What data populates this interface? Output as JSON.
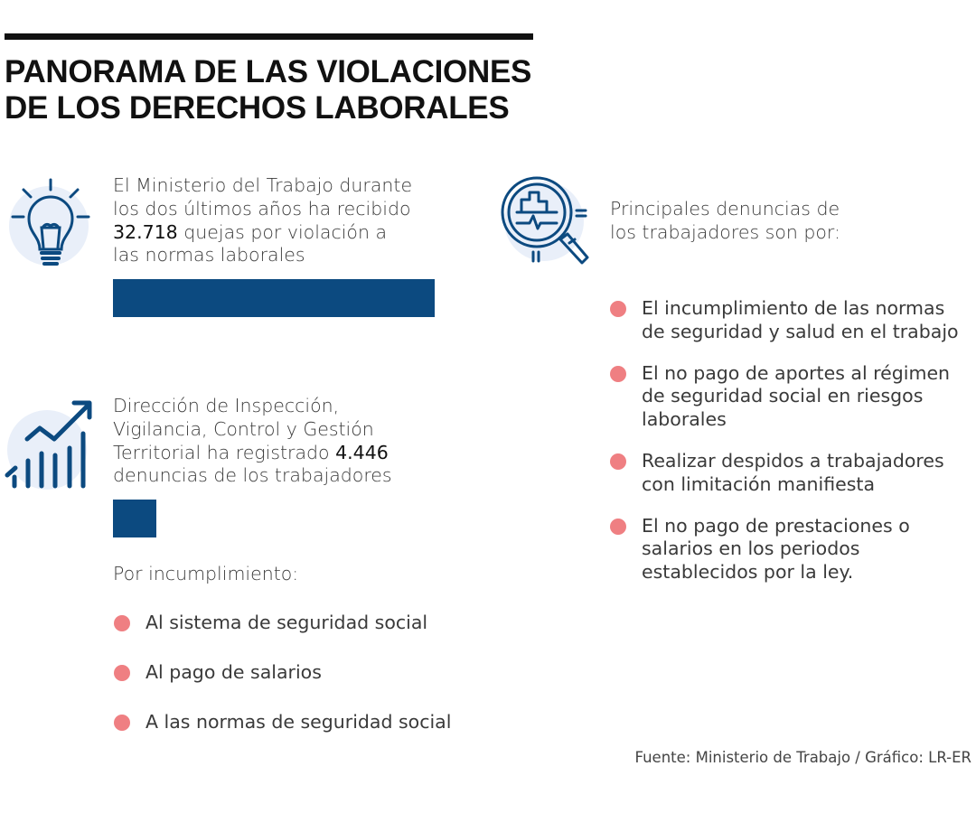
{
  "title_lines": [
    "PANORAMA DE LAS VIOLACIONES",
    "DE LOS DERECHOS LABORALES"
  ],
  "colors": {
    "accent": "#0c4a80",
    "bullet": "#ef7f82",
    "icon_bg": "#e9eff9"
  },
  "block1": {
    "icon": "lightbulb-icon",
    "lines": [
      "El Ministerio del Trabajo durante",
      "los dos últimos años ha recibido"
    ],
    "bold": "32.718",
    "line3_rest": " quejas por violación a",
    "line4": "las normas laborales"
  },
  "block2": {
    "icon": "growth-chart-icon",
    "lines": [
      "Dirección de Inspección,",
      "Vigilancia, Control y Gestión"
    ],
    "line3_pre": "Territorial ha registrado ",
    "bold": "4.446",
    "line4": "denuncias de los trabajadores"
  },
  "incumplimiento": {
    "heading": "Por incumplimiento:",
    "items": [
      "Al sistema de seguridad social",
      "Al pago de salarios",
      "A las normas de seguridad social"
    ]
  },
  "right": {
    "icon": "magnifier-analytics-icon",
    "intro_lines": [
      "Principales denuncias de",
      "los trabajadores son por:"
    ],
    "items": [
      [
        "El incumplimiento de las normas",
        "de seguridad y salud en el trabajo"
      ],
      [
        "El no pago de aportes al régimen",
        "de seguridad social en riesgos",
        "laborales"
      ],
      [
        "Realizar despidos a trabajadores",
        "con limitación manifiesta"
      ],
      [
        "El no pago de prestaciones o",
        "salarios en los periodos",
        "establecidos por la ley."
      ]
    ]
  },
  "footer": "Fuente: Ministerio de Trabajo  / Gráfico: LR-ER",
  "chart_data": {
    "type": "bar",
    "orientation": "horizontal",
    "values": [
      32718,
      4446
    ],
    "color": "#0c4a80",
    "grid": false
  }
}
